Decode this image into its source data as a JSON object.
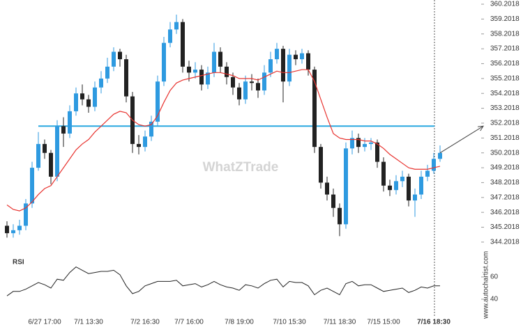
{
  "chart_data": [
    {
      "type": "candlestick",
      "categories": [
        null,
        null,
        null,
        null,
        null,
        null,
        "6/27 17:00",
        null,
        null,
        null,
        null,
        null,
        null,
        "7/1 13:30",
        null,
        null,
        null,
        null,
        null,
        null,
        null,
        null,
        "7/2 16:30",
        null,
        null,
        null,
        null,
        null,
        null,
        "7/7 16:00",
        null,
        null,
        null,
        null,
        null,
        null,
        null,
        "7/8 19:00",
        null,
        null,
        null,
        null,
        null,
        null,
        null,
        "7/10 15:30",
        null,
        null,
        null,
        null,
        null,
        null,
        null,
        "7/11 18:30",
        null,
        null,
        null,
        null,
        null,
        null,
        "7/15 15:00",
        null,
        null,
        null,
        null,
        null,
        null,
        null,
        "7/16 18:30",
        null
      ],
      "open": [
        345.3,
        344.8,
        345.0,
        345.3,
        346.8,
        349.2,
        350.8,
        350.2,
        348.6,
        352.0,
        351.5,
        353.0,
        354.2,
        353.8,
        353.3,
        354.6,
        355.2,
        356.0,
        357.0,
        356.5,
        354.0,
        350.8,
        350.6,
        351.3,
        352.3,
        355.0,
        357.6,
        358.5,
        359.0,
        356.0,
        355.6,
        355.8,
        354.8,
        355.6,
        357.0,
        356.0,
        355.3,
        354.6,
        353.8,
        355.0,
        354.9,
        354.4,
        355.6,
        356.5,
        357.2,
        355.0,
        356.8,
        356.5,
        356.9,
        355.8,
        350.6,
        348.2,
        347.4,
        346.5,
        345.4,
        350.5,
        351.2,
        350.6,
        350.8,
        350.9,
        349.6,
        348.0,
        347.7,
        348.3,
        348.6,
        347.0,
        347.4,
        348.6,
        349.0,
        349.8
      ],
      "high": [
        345.6,
        345.4,
        345.7,
        347.1,
        349.6,
        351.6,
        351.1,
        350.4,
        352.4,
        352.6,
        353.4,
        354.6,
        354.8,
        354.1,
        355.0,
        355.7,
        356.6,
        357.3,
        357.2,
        356.8,
        354.3,
        351.4,
        351.7,
        352.7,
        355.4,
        358.0,
        359.0,
        359.5,
        359.2,
        356.4,
        356.3,
        356.1,
        356.0,
        357.6,
        357.3,
        356.3,
        355.6,
        354.9,
        355.4,
        355.5,
        355.2,
        356.1,
        357.0,
        357.6,
        357.4,
        357.2,
        357.1,
        357.2,
        357.1,
        356.0,
        350.8,
        348.6,
        347.8,
        346.8,
        350.9,
        351.7,
        351.5,
        351.2,
        351.2,
        351.1,
        349.9,
        348.4,
        348.7,
        349.0,
        348.8,
        347.8,
        349.0,
        349.4,
        350.2,
        350.7
      ],
      "low": [
        344.5,
        344.5,
        344.7,
        345.0,
        346.5,
        349.0,
        349.8,
        348.1,
        348.3,
        350.6,
        351.2,
        352.7,
        353.4,
        352.9,
        353.0,
        354.2,
        354.9,
        355.7,
        356.0,
        353.6,
        350.2,
        350.1,
        350.3,
        351.0,
        352.0,
        354.7,
        357.3,
        358.2,
        355.6,
        355.0,
        355.2,
        354.4,
        354.5,
        355.3,
        355.6,
        354.8,
        354.1,
        353.4,
        353.5,
        354.4,
        353.9,
        354.1,
        355.3,
        356.2,
        353.6,
        354.7,
        356.1,
        356.2,
        355.4,
        350.2,
        347.8,
        347.0,
        345.9,
        344.6,
        345.1,
        350.1,
        350.2,
        350.3,
        350.4,
        349.2,
        347.6,
        347.3,
        347.4,
        347.9,
        346.6,
        345.9,
        347.1,
        348.3,
        348.8,
        349.6
      ],
      "close": [
        344.8,
        345.0,
        345.3,
        346.8,
        349.2,
        350.8,
        350.2,
        348.6,
        352.0,
        351.5,
        353.0,
        354.2,
        353.8,
        353.3,
        354.6,
        355.2,
        356.0,
        357.0,
        356.5,
        354.0,
        350.8,
        350.6,
        351.3,
        352.3,
        355.0,
        357.6,
        358.5,
        359.0,
        356.0,
        355.6,
        355.8,
        354.8,
        355.6,
        357.0,
        356.0,
        355.3,
        354.6,
        353.8,
        355.0,
        354.9,
        354.4,
        355.6,
        356.5,
        357.2,
        355.0,
        356.8,
        356.5,
        356.9,
        355.8,
        350.6,
        348.2,
        347.4,
        346.5,
        345.4,
        350.5,
        351.2,
        350.6,
        350.8,
        350.9,
        349.6,
        348.0,
        347.7,
        348.3,
        348.6,
        347.0,
        347.4,
        348.6,
        349.0,
        349.8,
        350.2
      ],
      "up_color": "#2e9ae0",
      "down_color": "#222222",
      "series": [
        {
          "color": "#e8332f",
          "values": [
            346.7,
            346.4,
            346.3,
            346.5,
            346.9,
            347.4,
            347.8,
            348.0,
            348.6,
            349.2,
            349.8,
            350.4,
            350.8,
            351.1,
            351.6,
            352.0,
            352.4,
            352.8,
            353.0,
            352.9,
            352.4,
            352.1,
            352.0,
            352.1,
            352.7,
            353.6,
            354.4,
            354.9,
            355.1,
            355.2,
            355.3,
            355.4,
            355.5,
            355.6,
            355.6,
            355.5,
            355.4,
            355.2,
            355.2,
            355.2,
            355.1,
            355.3,
            355.5,
            355.7,
            355.6,
            355.6,
            355.7,
            355.8,
            355.8,
            355.0,
            353.8,
            352.6,
            351.5,
            351.2,
            351.1,
            351.1,
            351.1,
            351.0,
            351.0,
            350.8,
            350.5,
            350.1,
            349.8,
            349.5,
            349.2,
            349.1,
            349.1,
            349.1,
            349.2,
            349.3
          ]
        }
      ],
      "levels": [
        {
          "value": 352.0,
          "color": "#29a8e0"
        }
      ],
      "target": 352.0,
      "ylim": [
        343.4018,
        360.2018
      ],
      "yticks": [
        344.2018,
        345.2018,
        346.2018,
        347.2018,
        348.2018,
        349.2018,
        350.2018,
        351.2018,
        352.2018,
        353.2018,
        354.2018,
        355.2018,
        356.2018,
        357.2018,
        358.2018,
        359.2018,
        360.2018
      ],
      "watermark": "WhatZTrade",
      "source": "www.autochartist.com"
    },
    {
      "type": "line",
      "title": "RSI",
      "series": [
        {
          "color": "#222222",
          "values": [
            43,
            47,
            47,
            49,
            52,
            55,
            53,
            50,
            58,
            57,
            64,
            69,
            66,
            63,
            64,
            65,
            65,
            66,
            62,
            52,
            45,
            47,
            52,
            54,
            56,
            56,
            56,
            57,
            52,
            53,
            54,
            51,
            53,
            56,
            53,
            51,
            50,
            48,
            53,
            52,
            50,
            54,
            57,
            58,
            51,
            56,
            55,
            55,
            52,
            44,
            48,
            50,
            47,
            44,
            54,
            56,
            52,
            53,
            53,
            50,
            47,
            48,
            49,
            50,
            46,
            48,
            51,
            50,
            52,
            52
          ]
        }
      ],
      "ylim": [
        28,
        72
      ],
      "yticks": [
        40,
        60
      ]
    }
  ]
}
